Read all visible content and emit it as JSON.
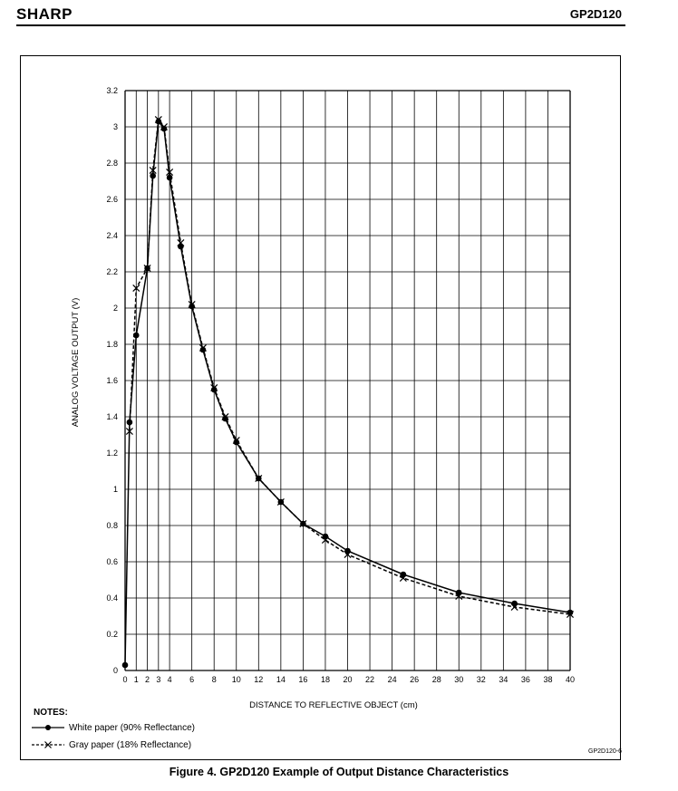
{
  "header": {
    "brand": "SHARP",
    "part_number": "GP2D120"
  },
  "notes": {
    "title": "NOTES:",
    "items": [
      {
        "label": "White paper (90% Reflectance)",
        "marker": "dot",
        "style": "solid"
      },
      {
        "label": "Gray paper (18% Reflectance)",
        "marker": "x",
        "style": "dashed"
      }
    ]
  },
  "figure_id": "GP2D120-6",
  "caption": "Figure 4.  GP2D120 Example of Output Distance Characteristics",
  "chart_data": {
    "type": "line",
    "title": "",
    "xlabel": "DISTANCE TO REFLECTIVE OBJECT (cm)",
    "ylabel": "ANALOG VOLTAGE OUTPUT (V)",
    "xlim": [
      0,
      40
    ],
    "ylim": [
      0,
      3.2
    ],
    "grid": true,
    "x_ticks": [
      0,
      2,
      4,
      6,
      8,
      10,
      12,
      14,
      16,
      18,
      20,
      22,
      24,
      26,
      28,
      30,
      32,
      34,
      36,
      38,
      40
    ],
    "x_tick_labels": [
      "0",
      "2",
      "4",
      "6",
      "8",
      "10",
      "12",
      "14",
      "16",
      "18",
      "20",
      "22",
      "24",
      "26",
      "28",
      "30",
      "32",
      "34",
      "36",
      "38",
      "40"
    ],
    "x_minor_ticks": [
      1,
      3
    ],
    "x_minor_tick_labels": [
      "1",
      "3"
    ],
    "y_ticks": [
      0,
      0.2,
      0.4,
      0.6,
      0.8,
      1,
      1.2,
      1.4,
      1.6,
      1.8,
      2,
      2.2,
      2.4,
      2.6,
      2.8,
      3,
      3.2
    ],
    "y_tick_labels": [
      "0",
      "0.2",
      "0.4",
      "0.6",
      "0.8",
      "1",
      "1.2",
      "1.4",
      "1.6",
      "1.8",
      "2",
      "2.2",
      "2.4",
      "2.6",
      "2.8",
      "3",
      "3.2"
    ],
    "legend_position": "bottom-left",
    "series": [
      {
        "name": "White paper (90% Reflectance)",
        "marker": "dot",
        "line": "solid",
        "color": "#000000",
        "x": [
          0,
          0.4,
          1,
          2,
          2.5,
          3,
          3.5,
          4,
          5,
          6,
          7,
          8,
          9,
          10,
          12,
          14,
          16,
          18,
          20,
          25,
          30,
          35,
          40
        ],
        "y": [
          0.03,
          1.37,
          1.85,
          2.22,
          2.73,
          3.03,
          2.99,
          2.72,
          2.34,
          2.01,
          1.77,
          1.55,
          1.39,
          1.26,
          1.06,
          0.93,
          0.81,
          0.74,
          0.66,
          0.53,
          0.43,
          0.37,
          0.32
        ]
      },
      {
        "name": "Gray paper (18% Reflectance)",
        "marker": "x",
        "line": "dashed",
        "color": "#000000",
        "x": [
          0.4,
          1,
          2,
          2.5,
          3,
          3.5,
          4,
          5,
          6,
          7,
          8,
          9,
          10,
          12,
          14,
          16,
          18,
          20,
          25,
          30,
          35,
          40
        ],
        "y": [
          1.32,
          2.11,
          2.22,
          2.76,
          3.04,
          3.0,
          2.75,
          2.36,
          2.02,
          1.78,
          1.56,
          1.4,
          1.27,
          1.06,
          0.93,
          0.81,
          0.72,
          0.64,
          0.51,
          0.41,
          0.35,
          0.31
        ]
      }
    ]
  }
}
